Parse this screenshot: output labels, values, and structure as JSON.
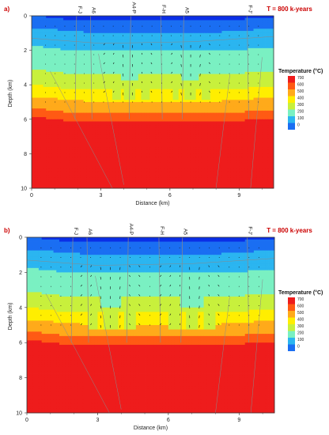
{
  "chart_data": [
    {
      "type": "heatmap",
      "panel_label": "a)",
      "time_label": "T = 800 k-years",
      "xlabel": "Distance (km)",
      "ylabel": "Depth (km)",
      "xlim": [
        0,
        10.5
      ],
      "ylim": [
        10,
        0
      ],
      "x_ticks": [
        "0",
        "3",
        "6",
        "9"
      ],
      "y_ticks": [
        "0",
        "2",
        "4",
        "6",
        "8",
        "10"
      ],
      "faults": [
        {
          "label": "F-J",
          "x": 1.95
        },
        {
          "label": "A6",
          "x": 2.55
        },
        {
          "label": "A4-P",
          "x": 4.3
        },
        {
          "label": "F-H",
          "x": 5.6
        },
        {
          "label": "A5",
          "x": 6.6
        },
        {
          "label": "F-J'",
          "x": 9.35
        }
      ],
      "plumes": [
        {
          "center_x": 4.3,
          "half_width": 0.85,
          "top_depth": 1.5,
          "peak_depth": 4.5
        },
        {
          "center_x": 6.9,
          "half_width": 0.85,
          "top_depth": 1.5,
          "peak_depth": 4.5
        }
      ],
      "legend_title": "Temperature (°C)",
      "legend_labels": [
        "700",
        "600",
        "500",
        "400",
        "300",
        "200",
        "100",
        "0"
      ]
    },
    {
      "type": "heatmap",
      "panel_label": "b)",
      "time_label": "T = 800 k-years",
      "xlabel": "Distance (km)",
      "ylabel": "Depth (km)",
      "xlim": [
        0,
        10.5
      ],
      "ylim": [
        10,
        0
      ],
      "x_ticks": [
        "0",
        "3",
        "6",
        "9"
      ],
      "y_ticks": [
        "0",
        "2",
        "4",
        "6",
        "8",
        "10"
      ],
      "faults": [
        {
          "label": "F-J",
          "x": 1.95
        },
        {
          "label": "A6",
          "x": 2.55
        },
        {
          "label": "A4-P",
          "x": 4.3
        },
        {
          "label": "F-H",
          "x": 5.6
        },
        {
          "label": "A5",
          "x": 6.6
        },
        {
          "label": "F-J'",
          "x": 9.35
        }
      ],
      "plumes": [
        {
          "center_x": 3.6,
          "half_width": 1.0,
          "top_depth": 1.4,
          "peak_depth": 4.8
        },
        {
          "center_x": 7.0,
          "half_width": 1.0,
          "top_depth": 1.4,
          "peak_depth": 4.8
        }
      ],
      "legend_title": "Temperature (°C)",
      "legend_labels": [
        "700",
        "600",
        "500",
        "400",
        "300",
        "200",
        "100",
        "0"
      ]
    }
  ],
  "colors": {
    "scale": [
      "#0a2ee6",
      "#1a6ef2",
      "#2bb5f0",
      "#7af0c2",
      "#c8f03c",
      "#ffee00",
      "#ffaa1a",
      "#ff5a14",
      "#ee1c1c"
    ],
    "legend": [
      "#ee1c1c",
      "#ff5a14",
      "#ffaa1a",
      "#ffee00",
      "#c8f03c",
      "#7af0c2",
      "#2bb5f0",
      "#1a6ef2"
    ],
    "grid_line": "#8a8a8a",
    "arrow": "#111111",
    "label_red": "#cc0000"
  }
}
